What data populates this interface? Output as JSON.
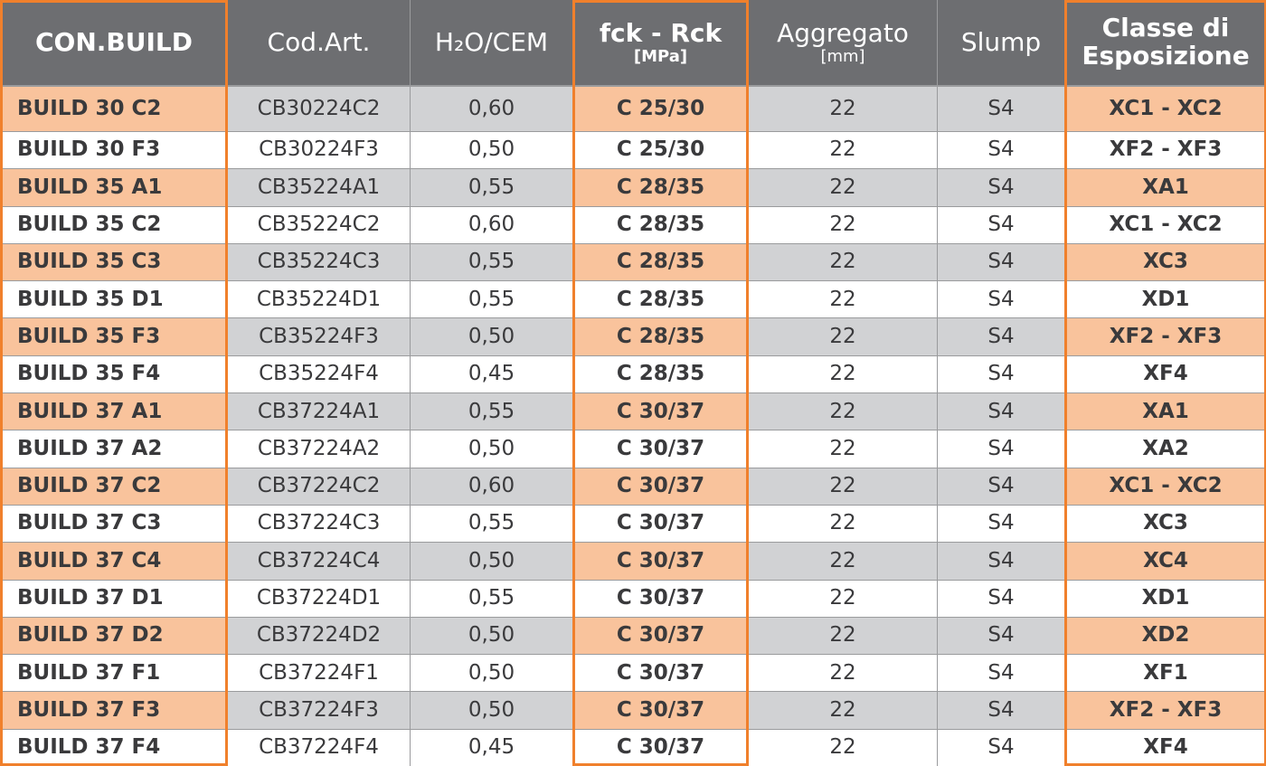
{
  "header": {
    "columns": [
      {
        "title": "CON.BUILD"
      },
      {
        "title": "Cod.Art."
      },
      {
        "title": "H₂O/CEM"
      },
      {
        "title": "fck - Rck",
        "unit": "[MPa]"
      },
      {
        "title": "Aggregato",
        "unit": "[mm]"
      },
      {
        "title": "Slump"
      },
      {
        "title": "Classe di Esposizione"
      }
    ]
  },
  "table": {
    "rows": [
      [
        "BUILD 30 C2",
        "CB30224C2",
        "0,60",
        "C 25/30",
        "22",
        "S4",
        "XC1 - XC2"
      ],
      [
        "BUILD 30 F3",
        "CB30224F3",
        "0,50",
        "C 25/30",
        "22",
        "S4",
        "XF2 - XF3"
      ],
      [
        "BUILD 35 A1",
        "CB35224A1",
        "0,55",
        "C 28/35",
        "22",
        "S4",
        "XA1"
      ],
      [
        "BUILD 35 C2",
        "CB35224C2",
        "0,60",
        "C 28/35",
        "22",
        "S4",
        "XC1 - XC2"
      ],
      [
        "BUILD 35 C3",
        "CB35224C3",
        "0,55",
        "C 28/35",
        "22",
        "S4",
        "XC3"
      ],
      [
        "BUILD 35 D1",
        "CB35224D1",
        "0,55",
        "C 28/35",
        "22",
        "S4",
        "XD1"
      ],
      [
        "BUILD 35 F3",
        "CB35224F3",
        "0,50",
        "C 28/35",
        "22",
        "S4",
        "XF2 - XF3"
      ],
      [
        "BUILD 35 F4",
        "CB35224F4",
        "0,45",
        "C 28/35",
        "22",
        "S4",
        "XF4"
      ],
      [
        "BUILD 37 A1",
        "CB37224A1",
        "0,55",
        "C 30/37",
        "22",
        "S4",
        "XA1"
      ],
      [
        "BUILD 37 A2",
        "CB37224A2",
        "0,50",
        "C 30/37",
        "22",
        "S4",
        "XA2"
      ],
      [
        "BUILD 37 C2",
        "CB37224C2",
        "0,60",
        "C 30/37",
        "22",
        "S4",
        "XC1 - XC2"
      ],
      [
        "BUILD 37 C3",
        "CB37224C3",
        "0,55",
        "C 30/37",
        "22",
        "S4",
        "XC3"
      ],
      [
        "BUILD 37 C4",
        "CB37224C4",
        "0,50",
        "C 30/37",
        "22",
        "S4",
        "XC4"
      ],
      [
        "BUILD 37 D1",
        "CB37224D1",
        "0,55",
        "C 30/37",
        "22",
        "S4",
        "XD1"
      ],
      [
        "BUILD 37 D2",
        "CB37224D2",
        "0,50",
        "C 30/37",
        "22",
        "S4",
        "XD2"
      ],
      [
        "BUILD 37 F1",
        "CB37224F1",
        "0,50",
        "C 30/37",
        "22",
        "S4",
        "XF1"
      ],
      [
        "BUILD 37 F3",
        "CB37224F3",
        "0,50",
        "C 30/37",
        "22",
        "S4",
        "XF2 - XF3"
      ],
      [
        "BUILD 37 F4",
        "CB37224F4",
        "0,45",
        "C 30/37",
        "22",
        "S4",
        "XF4"
      ]
    ]
  }
}
